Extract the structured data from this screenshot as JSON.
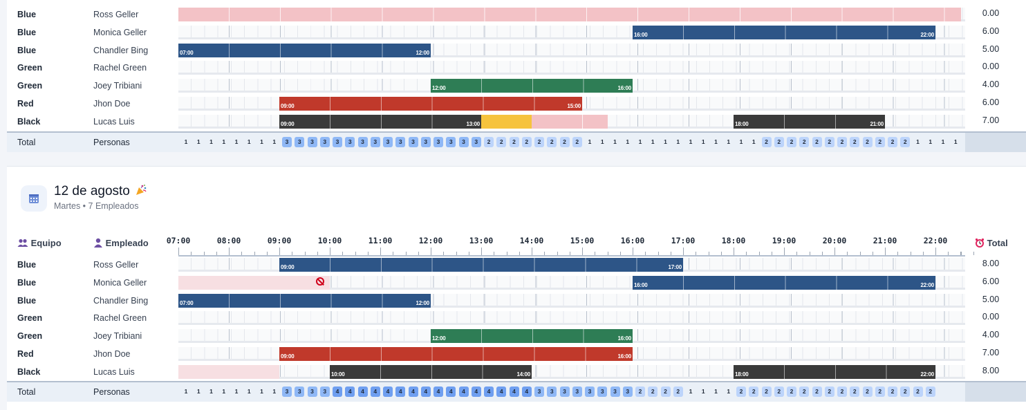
{
  "section1": {
    "rows": [
      {
        "team": "Blue",
        "employee": "Ross Geller",
        "total": "0.00",
        "segments": [
          {
            "kind": "pink",
            "from": "07:00",
            "to": "22:30"
          }
        ]
      },
      {
        "team": "Blue",
        "employee": "Monica Geller",
        "total": "6.00",
        "segments": [
          {
            "kind": "blue",
            "from": "16:00",
            "to": "22:00",
            "start": "16:00",
            "end": "22:00"
          }
        ]
      },
      {
        "team": "Blue",
        "employee": "Chandler Bing",
        "total": "5.00",
        "segments": [
          {
            "kind": "blue",
            "from": "07:00",
            "to": "12:00",
            "start": "07:00",
            "end": "12:00"
          }
        ]
      },
      {
        "team": "Green",
        "employee": "Rachel Green",
        "total": "0.00",
        "segments": []
      },
      {
        "team": "Green",
        "employee": "Joey Tribiani",
        "total": "4.00",
        "segments": [
          {
            "kind": "green",
            "from": "12:00",
            "to": "16:00",
            "start": "12:00",
            "end": "16:00"
          }
        ]
      },
      {
        "team": "Red",
        "employee": "Jhon Doe",
        "total": "6.00",
        "segments": [
          {
            "kind": "red",
            "from": "09:00",
            "to": "15:00",
            "start": "09:00",
            "end": "15:00"
          }
        ]
      },
      {
        "team": "Black",
        "employee": "Lucas Luis",
        "total": "7.00",
        "segments": [
          {
            "kind": "black",
            "from": "09:00",
            "to": "13:00",
            "start": "09:00",
            "end": "13:00"
          },
          {
            "kind": "yellow",
            "from": "13:00",
            "to": "14:00"
          },
          {
            "kind": "pink",
            "from": "14:00",
            "to": "15:30"
          },
          {
            "kind": "black",
            "from": "18:00",
            "to": "21:00",
            "start": "18:00",
            "end": "21:00"
          }
        ]
      }
    ],
    "total_label": "Total",
    "total_sub": "Personas",
    "counts": [
      "1",
      "1",
      "1",
      "1",
      "1",
      "1",
      "1",
      "1",
      "3",
      "3",
      "3",
      "3",
      "3",
      "3",
      "3",
      "3",
      "3",
      "3",
      "3",
      "3",
      "3",
      "3",
      "3",
      "3",
      "2",
      "2",
      "2",
      "2",
      "2",
      "2",
      "2",
      "2",
      "1",
      "1",
      "1",
      "1",
      "1",
      "1",
      "1",
      "1",
      "1",
      "1",
      "1",
      "1",
      "1",
      "1",
      "2",
      "2",
      "2",
      "2",
      "2",
      "2",
      "2",
      "2",
      "2",
      "2",
      "2",
      "2",
      "1",
      "1",
      "1",
      "1"
    ]
  },
  "section2": {
    "date_title": "12 de agosto",
    "date_sub": "Martes • 7 Empleados",
    "icons": {
      "calendar": "calendar-icon",
      "party": "party-popper-icon",
      "team": "people-icon",
      "employee": "person-icon",
      "total": "alarm-clock-icon",
      "blocked": "prohibited-icon"
    },
    "header": {
      "team": "Equipo",
      "employee": "Empleado",
      "total": "Total"
    },
    "hours": [
      "07:00",
      "08:00",
      "09:00",
      "10:00",
      "11:00",
      "12:00",
      "13:00",
      "14:00",
      "15:00",
      "16:00",
      "17:00",
      "18:00",
      "19:00",
      "20:00",
      "21:00",
      "22:00"
    ],
    "rows": [
      {
        "team": "Blue",
        "employee": "Ross Geller",
        "total": "8.00",
        "segments": [
          {
            "kind": "blue",
            "from": "09:00",
            "to": "17:00",
            "start": "09:00",
            "end": "17:00"
          }
        ]
      },
      {
        "team": "Blue",
        "employee": "Monica Geller",
        "total": "6.00",
        "blocked_until": "10:00",
        "segments": [
          {
            "kind": "faint",
            "from": "07:00",
            "to": "10:00"
          },
          {
            "kind": "blue",
            "from": "16:00",
            "to": "22:00",
            "start": "16:00",
            "end": "22:00"
          }
        ]
      },
      {
        "team": "Blue",
        "employee": "Chandler Bing",
        "total": "5.00",
        "segments": [
          {
            "kind": "blue",
            "from": "07:00",
            "to": "12:00",
            "start": "07:00",
            "end": "12:00"
          }
        ]
      },
      {
        "team": "Green",
        "employee": "Rachel Green",
        "total": "0.00",
        "segments": []
      },
      {
        "team": "Green",
        "employee": "Joey Tribiani",
        "total": "4.00",
        "segments": [
          {
            "kind": "green",
            "from": "12:00",
            "to": "16:00",
            "start": "12:00",
            "end": "16:00"
          }
        ]
      },
      {
        "team": "Red",
        "employee": "Jhon Doe",
        "total": "7.00",
        "segments": [
          {
            "kind": "red",
            "from": "09:00",
            "to": "16:00",
            "start": "09:00",
            "end": "16:00"
          }
        ]
      },
      {
        "team": "Black",
        "employee": "Lucas Luis",
        "total": "8.00",
        "segments": [
          {
            "kind": "faint",
            "from": "07:00",
            "to": "09:00"
          },
          {
            "kind": "black",
            "from": "10:00",
            "to": "14:00",
            "start": "10:00",
            "end": "14:00"
          },
          {
            "kind": "black",
            "from": "18:00",
            "to": "22:00",
            "start": "18:00",
            "end": "22:00"
          }
        ]
      }
    ],
    "total_label": "Total",
    "total_sub": "Personas",
    "counts": [
      "1",
      "1",
      "1",
      "1",
      "1",
      "1",
      "1",
      "1",
      "3",
      "3",
      "3",
      "3",
      "4",
      "4",
      "4",
      "4",
      "4",
      "4",
      "4",
      "4",
      "4",
      "4",
      "4",
      "4",
      "4",
      "4",
      "4",
      "4",
      "3",
      "3",
      "3",
      "3",
      "3",
      "3",
      "3",
      "3",
      "2",
      "2",
      "2",
      "2",
      "1",
      "1",
      "1",
      "1",
      "2",
      "2",
      "2",
      "2",
      "2",
      "2",
      "2",
      "2",
      "2",
      "2",
      "2",
      "2",
      "2",
      "2",
      "2",
      "2"
    ]
  }
}
